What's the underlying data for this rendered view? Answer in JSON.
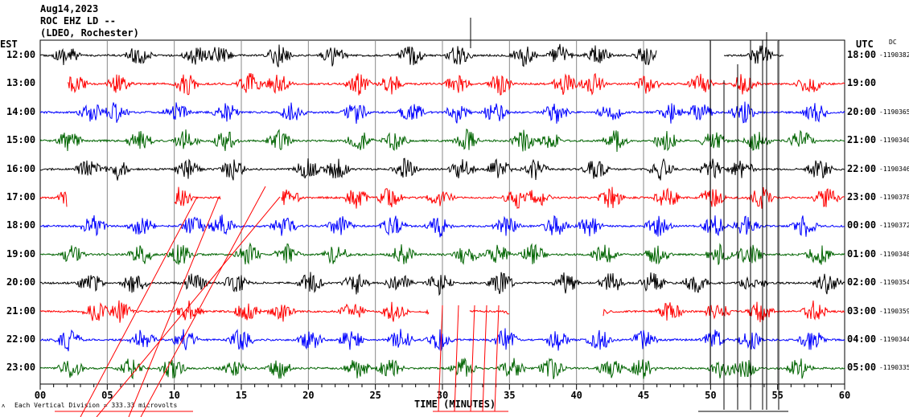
{
  "chart_data": {
    "type": "line",
    "title": [
      "Aug14,2023",
      "ROC EHZ LD --",
      "(LDEO, Rochester)"
    ],
    "left_axis_label": "EST",
    "right_axis_label": "UTC",
    "dc_label": "DC",
    "xlabel": "TIME (MINUTES)",
    "xlim": [
      0,
      60
    ],
    "x_ticks": [
      "00",
      "05",
      "10",
      "15",
      "20",
      "25",
      "30",
      "35",
      "40",
      "45",
      "50",
      "55",
      "60"
    ],
    "scale_note": "Each Vertical Division =   333.33 microvolts",
    "series_colors": [
      "#000000",
      "#ff0000",
      "#0000ff",
      "#006400"
    ],
    "rows": [
      {
        "est": "12:00",
        "utc": "18:00",
        "dc": "-1190382"
      },
      {
        "est": "13:00",
        "utc": "19:00",
        "dc": ""
      },
      {
        "est": "14:00",
        "utc": "20:00",
        "dc": "-1190365"
      },
      {
        "est": "15:00",
        "utc": "21:00",
        "dc": "-1190340"
      },
      {
        "est": "16:00",
        "utc": "22:00",
        "dc": "-1190346"
      },
      {
        "est": "17:00",
        "utc": "23:00",
        "dc": "-1190378"
      },
      {
        "est": "18:00",
        "utc": "00:00",
        "dc": "-1190372"
      },
      {
        "est": "19:00",
        "utc": "01:00",
        "dc": "-1190348"
      },
      {
        "est": "20:00",
        "utc": "02:00",
        "dc": "-1190354"
      },
      {
        "est": "21:00",
        "utc": "03:00",
        "dc": "-1190359"
      },
      {
        "est": "22:00",
        "utc": "04:00",
        "dc": "-1190344"
      },
      {
        "est": "23:00",
        "utc": "05:00",
        "dc": "-1190335"
      }
    ]
  }
}
